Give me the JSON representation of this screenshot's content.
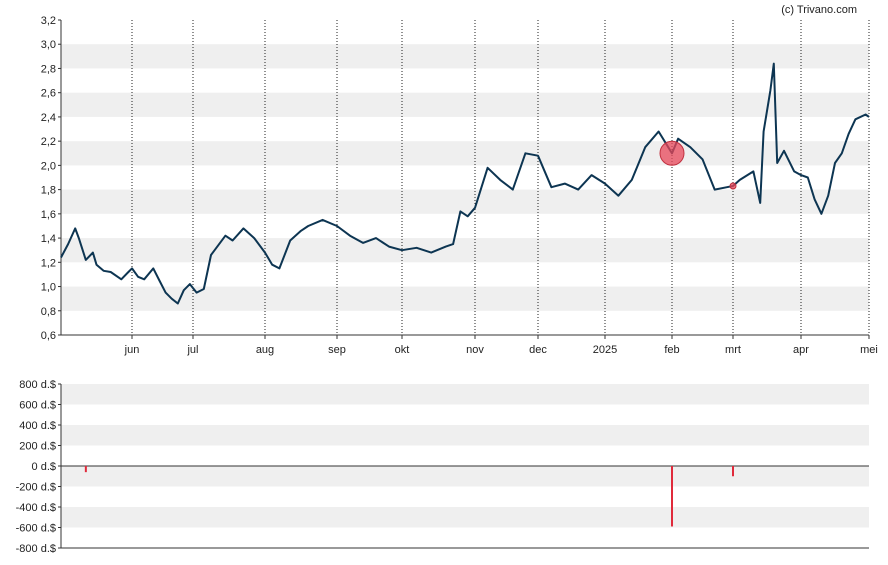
{
  "credit": "(c) Trivano.com",
  "colors": {
    "price_line": "#0d3552",
    "band": "#efefef",
    "grid": "#222222",
    "marker": "#e8475a",
    "volume_bar": "#e02a3b"
  },
  "chart_data": [
    {
      "type": "line",
      "title": "",
      "ylim": [
        0.6,
        3.2
      ],
      "yticks": [
        "0,6",
        "0,8",
        "1,0",
        "1,2",
        "1,4",
        "1,6",
        "1,8",
        "2,0",
        "2,2",
        "2,4",
        "2,6",
        "2,8",
        "3,0",
        "3,2"
      ],
      "xticks": [
        "jun",
        "jul",
        "aug",
        "sep",
        "okt",
        "nov",
        "dec",
        "2025",
        "feb",
        "mrt",
        "apr",
        "mei"
      ],
      "grid": "vertical dotted lines at month starts, alternating horizontal bands",
      "series": [
        {
          "x_month_index": [
            -1.0,
            -0.9,
            -0.8,
            -0.75,
            -0.65,
            -0.55,
            -0.5,
            -0.4,
            -0.3,
            -0.15,
            -0.05,
            0,
            0.1,
            0.2,
            0.35,
            0.45,
            0.55,
            0.65,
            0.75,
            0.85,
            0.95,
            1.05,
            1.15,
            1.25,
            1.3,
            1.45,
            1.55,
            1.7,
            1.85,
            2.0,
            2.1,
            2.2,
            2.35,
            2.5,
            2.6,
            2.8,
            3.0,
            3.2,
            3.4,
            3.6,
            3.8,
            4.0,
            4.2,
            4.4,
            4.6,
            4.7,
            4.8,
            4.9,
            5.0,
            5.2,
            5.4,
            5.6,
            5.8,
            6.0,
            6.2,
            6.4,
            6.6,
            6.8,
            7.0,
            7.2,
            7.4,
            7.6,
            7.8,
            8.0,
            8.1,
            8.3,
            8.5,
            8.7,
            8.9,
            9.0,
            9.1,
            9.3,
            9.4,
            9.45,
            9.55,
            9.6,
            9.65,
            9.75,
            9.9,
            10.0,
            10.1,
            10.2,
            10.3,
            10.4,
            10.5,
            10.6,
            10.7,
            10.8,
            10.95,
            11.0
          ],
          "values": [
            1.24,
            1.35,
            1.48,
            1.4,
            1.22,
            1.28,
            1.18,
            1.13,
            1.12,
            1.06,
            1.12,
            1.15,
            1.08,
            1.06,
            1.15,
            1.05,
            0.95,
            0.9,
            0.86,
            0.97,
            1.02,
            0.95,
            0.98,
            1.26,
            1.3,
            1.42,
            1.38,
            1.48,
            1.4,
            1.28,
            1.18,
            1.15,
            1.38,
            1.46,
            1.5,
            1.55,
            1.5,
            1.42,
            1.36,
            1.4,
            1.33,
            1.3,
            1.32,
            1.28,
            1.33,
            1.35,
            1.62,
            1.58,
            1.65,
            1.98,
            1.88,
            1.8,
            2.1,
            2.08,
            1.82,
            1.85,
            1.8,
            1.92,
            1.85,
            1.75,
            1.88,
            2.15,
            2.28,
            2.1,
            2.22,
            2.15,
            2.05,
            1.8,
            1.82,
            1.83,
            1.88,
            1.95,
            1.69,
            2.28,
            2.62,
            2.84,
            2.02,
            2.12,
            1.95,
            1.92,
            1.9,
            1.72,
            1.6,
            1.75,
            2.02,
            2.1,
            2.26,
            2.38,
            2.42,
            2.4
          ]
        }
      ],
      "annotations": [
        {
          "type": "marker",
          "x_month_index": 8.0,
          "value": 2.1
        },
        {
          "type": "small-marker",
          "x_month_index": 9.0,
          "value": 1.83
        }
      ]
    },
    {
      "type": "bar",
      "title": "",
      "ylim": [
        -800,
        800
      ],
      "yticks": [
        "-800 d.$",
        "-600 d.$",
        "-400 d.$",
        "-200 d.$",
        "0 d.$",
        "200 d.$",
        "400 d.$",
        "600 d.$",
        "800 d.$"
      ],
      "series": [
        {
          "x_month_index": [
            -0.65,
            8.0,
            9.0
          ],
          "values": [
            -60,
            -590,
            -100
          ]
        }
      ]
    }
  ]
}
